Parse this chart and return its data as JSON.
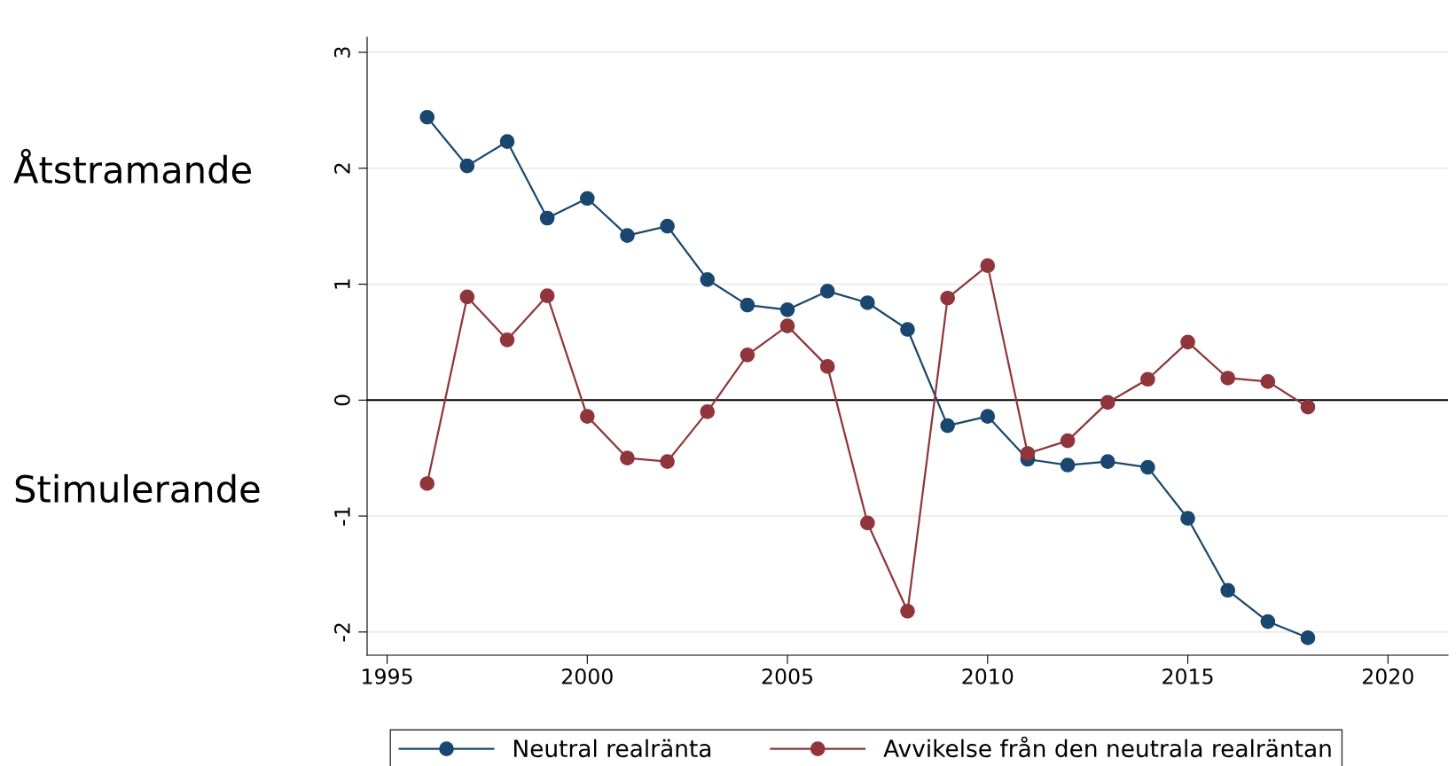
{
  "chart_data": {
    "type": "line",
    "x": [
      1996,
      1997,
      1998,
      1999,
      2000,
      2001,
      2002,
      2003,
      2004,
      2005,
      2006,
      2007,
      2008,
      2009,
      2010,
      2011,
      2012,
      2013,
      2014,
      2015,
      2016,
      2017,
      2018
    ],
    "series": [
      {
        "name": "Neutral realränta",
        "color": "#1a476f",
        "values": [
          2.44,
          2.02,
          2.23,
          1.57,
          1.74,
          1.42,
          1.5,
          1.04,
          0.82,
          0.78,
          0.94,
          0.84,
          0.61,
          -0.22,
          -0.14,
          -0.51,
          -0.56,
          -0.53,
          -0.58,
          -1.02,
          -1.64,
          -1.91,
          -2.05
        ]
      },
      {
        "name": "Avvikelse från den neutrala realräntan",
        "color": "#90353b",
        "values": [
          -0.72,
          0.89,
          0.52,
          0.9,
          -0.14,
          -0.5,
          -0.53,
          -0.1,
          0.39,
          0.64,
          0.29,
          -1.06,
          -1.82,
          0.88,
          1.16,
          -0.46,
          -0.35,
          -0.02,
          0.18,
          0.5,
          0.19,
          0.16,
          -0.06
        ]
      }
    ],
    "xlim": [
      1994.5,
      2021.5
    ],
    "xticks": [
      1995,
      2000,
      2005,
      2010,
      2015,
      2020
    ],
    "ylim": [
      -2.2,
      3.13
    ],
    "yticks": [
      -2,
      -1,
      0,
      1,
      2,
      3
    ],
    "ref_lines": [
      {
        "axis": "y",
        "value": 0,
        "color": "#000000"
      }
    ],
    "annotations": [
      "Åtstramande",
      "Stimulerande"
    ],
    "grid": "y",
    "legend": "bottom",
    "marker": "circle",
    "line_style": "solid"
  }
}
